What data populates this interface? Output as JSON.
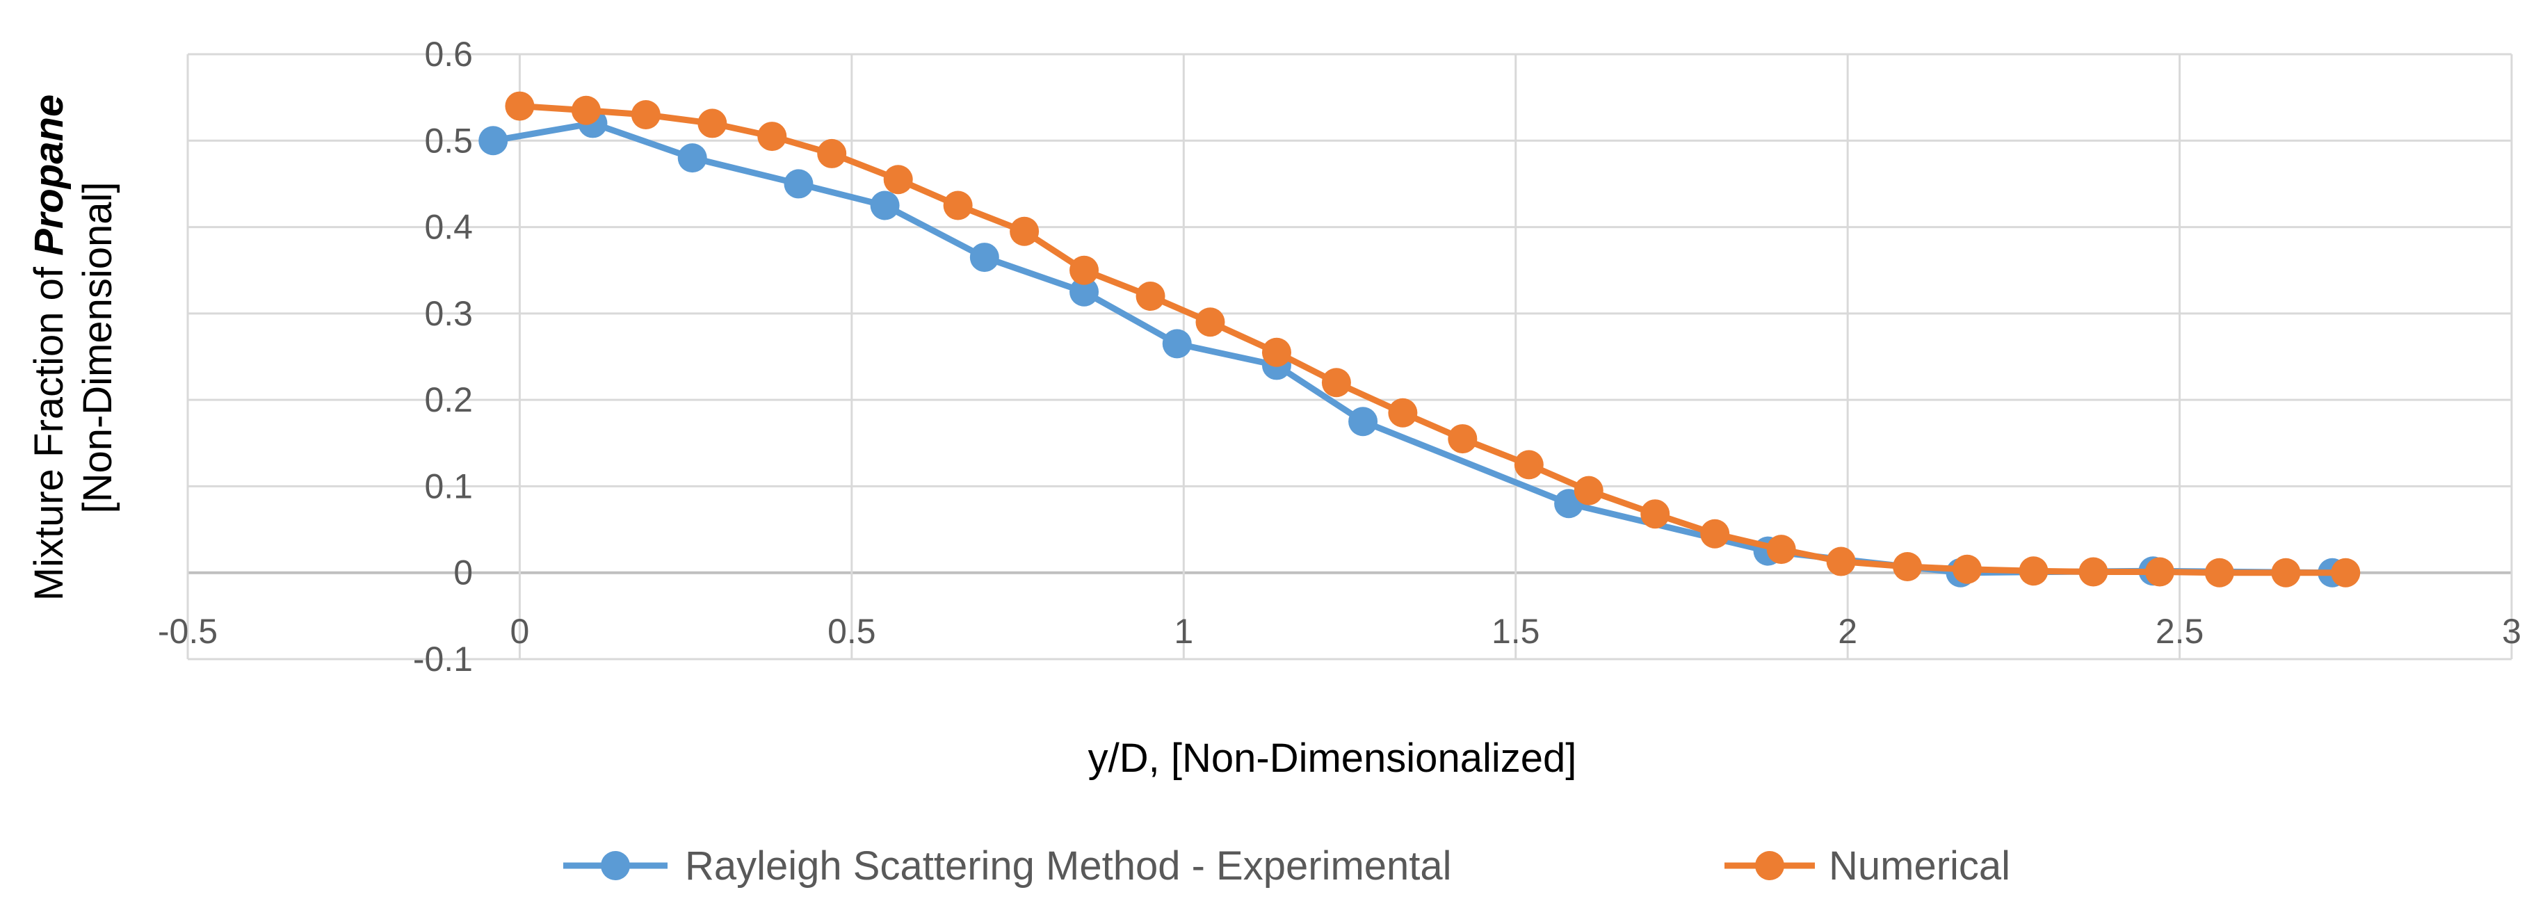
{
  "chart_data": {
    "type": "line",
    "xlabel": "y/D, [Non-Dimensionalized]",
    "ylabel_line1_prefix": "Mixture Fraction of ",
    "ylabel_line1_emphasis": "Propane",
    "ylabel_line2": "[Non-Dimensional]",
    "xlim": [
      -0.5,
      3
    ],
    "ylim": [
      -0.1,
      0.6
    ],
    "xticks": [
      -0.5,
      0,
      0.5,
      1,
      1.5,
      2,
      2.5,
      3
    ],
    "yticks": [
      -0.1,
      0,
      0.1,
      0.2,
      0.3,
      0.4,
      0.5,
      0.6
    ],
    "xtick_labels": [
      "-0.5",
      "0",
      "0.5",
      "1",
      "1.5",
      "2",
      "2.5",
      "3"
    ],
    "ytick_labels": [
      "-0.1",
      "0",
      "0.1",
      "0.2",
      "0.3",
      "0.4",
      "0.5",
      "0.6"
    ],
    "grid": true,
    "legend_position": "bottom",
    "series": [
      {
        "name": "Rayleigh Scattering Method - Experimental",
        "color": "#5b9bd5",
        "x": [
          -0.04,
          0.11,
          0.26,
          0.42,
          0.55,
          0.7,
          0.85,
          0.99,
          1.14,
          1.27,
          1.58,
          1.88,
          2.17,
          2.46,
          2.73
        ],
        "y": [
          0.5,
          0.52,
          0.48,
          0.45,
          0.425,
          0.365,
          0.325,
          0.265,
          0.24,
          0.175,
          0.08,
          0.025,
          0.0,
          0.002,
          0.0
        ]
      },
      {
        "name": "Numerical",
        "color": "#ed7d31",
        "x": [
          0.0,
          0.1,
          0.19,
          0.29,
          0.38,
          0.47,
          0.57,
          0.66,
          0.76,
          0.85,
          0.95,
          1.04,
          1.14,
          1.23,
          1.33,
          1.42,
          1.52,
          1.61,
          1.71,
          1.8,
          1.9,
          1.99,
          2.09,
          2.18,
          2.28,
          2.37,
          2.47,
          2.56,
          2.66,
          2.75
        ],
        "y": [
          0.54,
          0.535,
          0.53,
          0.52,
          0.505,
          0.485,
          0.455,
          0.425,
          0.395,
          0.35,
          0.32,
          0.29,
          0.255,
          0.22,
          0.185,
          0.155,
          0.125,
          0.095,
          0.068,
          0.045,
          0.027,
          0.013,
          0.007,
          0.004,
          0.002,
          0.001,
          0.001,
          0.0,
          0.0,
          0.0
        ]
      }
    ]
  }
}
